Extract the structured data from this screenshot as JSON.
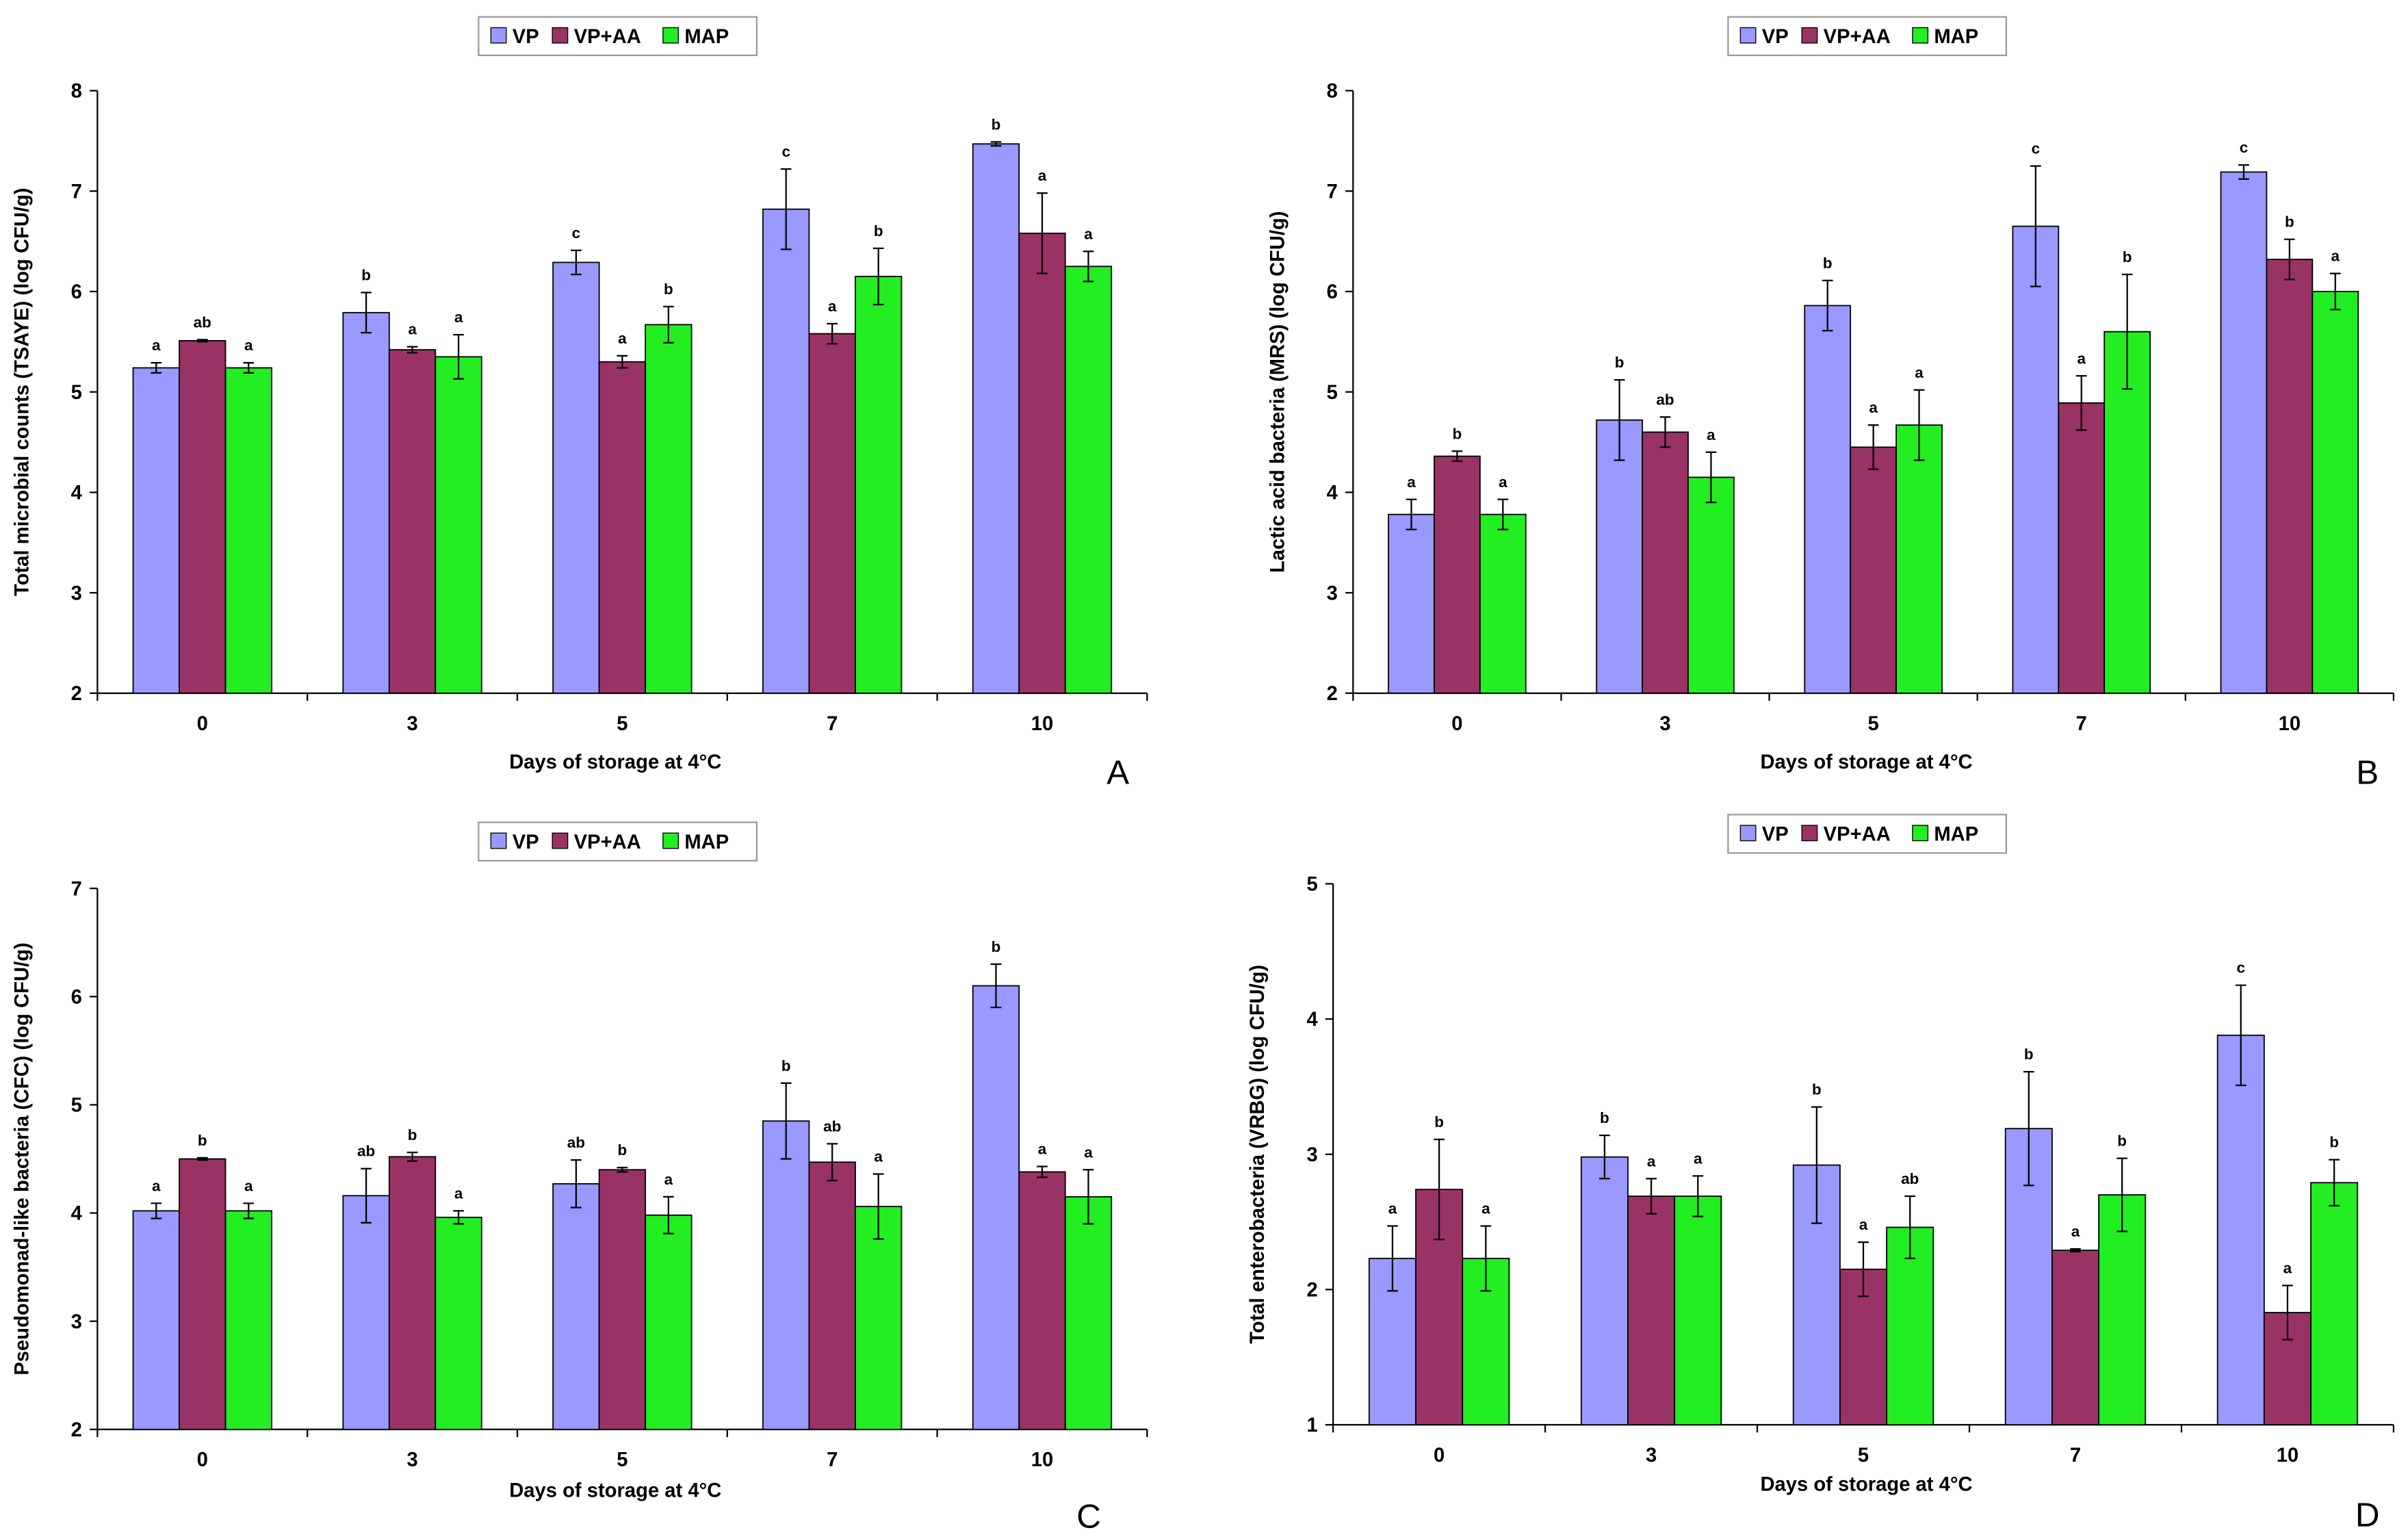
{
  "chart_data": [
    {
      "type": "bar",
      "panel": "A",
      "y_label": "Total microbial counts (TSAYE) (log CFU/g)",
      "x_label": "Days of storage at 4°C",
      "categories": [
        "0",
        "3",
        "5",
        "7",
        "10"
      ],
      "ylim": [
        2,
        8
      ],
      "yticks": [
        2,
        3,
        4,
        5,
        6,
        7,
        8
      ],
      "series": [
        {
          "name": "VP",
          "color": "#9999ff",
          "values": [
            5.24,
            5.79,
            6.29,
            6.82,
            7.47
          ],
          "errors": [
            0.05,
            0.2,
            0.12,
            0.4,
            0.02
          ],
          "letters": [
            "a",
            "b",
            "c",
            "c",
            "b"
          ]
        },
        {
          "name": "VP+AA",
          "color": "#993366",
          "values": [
            5.51,
            5.42,
            5.3,
            5.58,
            6.58
          ],
          "errors": [
            0.01,
            0.03,
            0.06,
            0.1,
            0.4
          ],
          "letters": [
            "ab",
            "a",
            "a",
            "a",
            "a"
          ]
        },
        {
          "name": "MAP",
          "color": "#22ee22",
          "values": [
            5.24,
            5.35,
            5.67,
            6.15,
            6.25
          ],
          "errors": [
            0.05,
            0.22,
            0.18,
            0.28,
            0.15
          ],
          "letters": [
            "a",
            "a",
            "b",
            "b",
            "a"
          ]
        }
      ]
    },
    {
      "type": "bar",
      "panel": "B",
      "y_label": "Lactic acid bacteria (MRS) (log CFU/g)",
      "x_label": "Days of storage at 4°C",
      "categories": [
        "0",
        "3",
        "5",
        "7",
        "10"
      ],
      "ylim": [
        2,
        8
      ],
      "yticks": [
        2,
        3,
        4,
        5,
        6,
        7,
        8
      ],
      "series": [
        {
          "name": "VP",
          "color": "#9999ff",
          "values": [
            3.78,
            4.72,
            5.86,
            6.65,
            7.19
          ],
          "errors": [
            0.15,
            0.4,
            0.25,
            0.6,
            0.07
          ],
          "letters": [
            "a",
            "b",
            "b",
            "c",
            "c"
          ]
        },
        {
          "name": "VP+AA",
          "color": "#993366",
          "values": [
            4.36,
            4.6,
            4.45,
            4.89,
            6.32
          ],
          "errors": [
            0.05,
            0.15,
            0.22,
            0.27,
            0.2
          ],
          "letters": [
            "b",
            "ab",
            "a",
            "a",
            "b"
          ]
        },
        {
          "name": "MAP",
          "color": "#22ee22",
          "values": [
            3.78,
            4.15,
            4.67,
            5.6,
            6.0
          ],
          "errors": [
            0.15,
            0.25,
            0.35,
            0.57,
            0.18
          ],
          "letters": [
            "a",
            "a",
            "a",
            "b",
            "a"
          ]
        }
      ]
    },
    {
      "type": "bar",
      "panel": "C",
      "y_label": "Pseudomonad-like bacteria (CFC) (log CFU/g)",
      "x_label": "Days of storage at 4°C",
      "categories": [
        "0",
        "3",
        "5",
        "7",
        "10"
      ],
      "ylim": [
        2,
        7
      ],
      "yticks": [
        2,
        3,
        4,
        5,
        6,
        7
      ],
      "series": [
        {
          "name": "VP",
          "color": "#9999ff",
          "values": [
            4.02,
            4.16,
            4.27,
            4.85,
            6.1
          ],
          "errors": [
            0.07,
            0.25,
            0.22,
            0.35,
            0.2
          ],
          "letters": [
            "a",
            "ab",
            "ab",
            "b",
            "b"
          ]
        },
        {
          "name": "VP+AA",
          "color": "#993366",
          "values": [
            4.5,
            4.52,
            4.4,
            4.47,
            4.38
          ],
          "errors": [
            0.01,
            0.04,
            0.02,
            0.17,
            0.05
          ],
          "letters": [
            "b",
            "b",
            "b",
            "ab",
            "a"
          ]
        },
        {
          "name": "MAP",
          "color": "#22ee22",
          "values": [
            4.02,
            3.96,
            3.98,
            4.06,
            4.15
          ],
          "errors": [
            0.07,
            0.06,
            0.17,
            0.3,
            0.25
          ],
          "letters": [
            "a",
            "a",
            "a",
            "a",
            "a"
          ]
        }
      ]
    },
    {
      "type": "bar",
      "panel": "D",
      "y_label": "Total enterobacteria (VRBG) (log CFU/g)",
      "x_label": "Days of storage at 4°C",
      "categories": [
        "0",
        "3",
        "5",
        "7",
        "10"
      ],
      "ylim": [
        1,
        5
      ],
      "yticks": [
        1,
        2,
        3,
        4,
        5
      ],
      "series": [
        {
          "name": "VP",
          "color": "#9999ff",
          "values": [
            2.23,
            2.98,
            2.92,
            3.19,
            3.88
          ],
          "errors": [
            0.24,
            0.16,
            0.43,
            0.42,
            0.37
          ],
          "letters": [
            "a",
            "b",
            "b",
            "b",
            "c"
          ]
        },
        {
          "name": "VP+AA",
          "color": "#993366",
          "values": [
            2.74,
            2.69,
            2.15,
            2.29,
            1.83
          ],
          "errors": [
            0.37,
            0.13,
            0.2,
            0.01,
            0.2
          ],
          "letters": [
            "b",
            "a",
            "a",
            "a",
            "a"
          ]
        },
        {
          "name": "MAP",
          "color": "#22ee22",
          "values": [
            2.23,
            2.69,
            2.46,
            2.7,
            2.79
          ],
          "errors": [
            0.24,
            0.15,
            0.23,
            0.27,
            0.17
          ],
          "letters": [
            "a",
            "a",
            "ab",
            "b",
            "b"
          ]
        }
      ]
    }
  ]
}
